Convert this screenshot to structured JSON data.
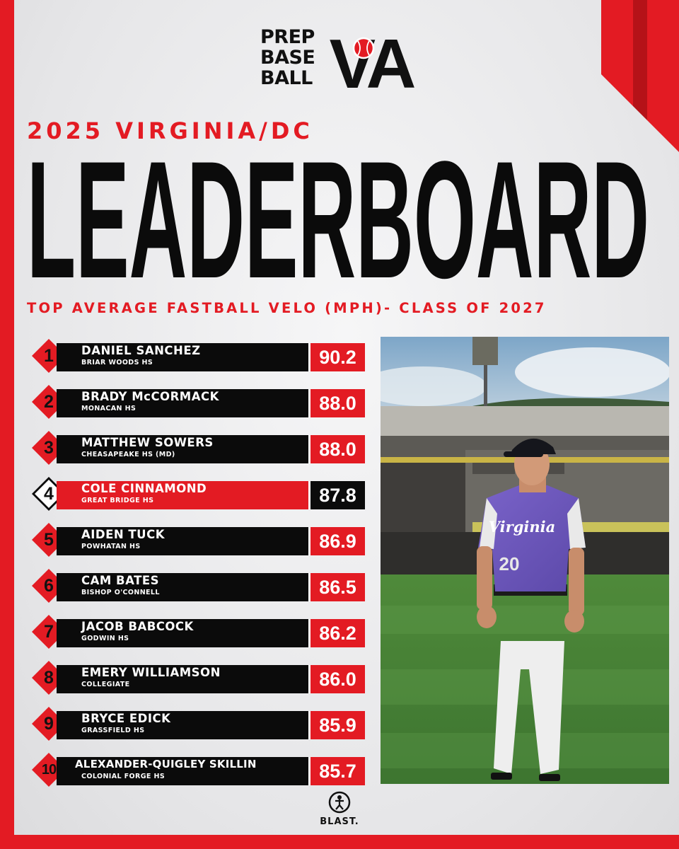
{
  "brand": {
    "logo_lines": [
      "PREP",
      "BASE",
      "BALL"
    ],
    "logo_state": "VA",
    "accent_color": "#e31b23",
    "dark_color": "#0b0b0b"
  },
  "header": {
    "year_region": "2025 VIRGINIA/DC",
    "title": "LEADERBOARD",
    "metric": "TOP AVERAGE FASTBALL VELO (MPH)- CLASS OF 2027"
  },
  "leaderboard": [
    {
      "rank": "1",
      "name": "DANIEL SANCHEZ",
      "school": "BRIAR WOODS HS",
      "velo": "90.2"
    },
    {
      "rank": "2",
      "name": "BRADY McCORMACK",
      "school": "MONACAN HS",
      "velo": "88.0"
    },
    {
      "rank": "3",
      "name": "MATTHEW SOWERS",
      "school": "CHEASAPEAKE HS (MD)",
      "velo": "88.0"
    },
    {
      "rank": "4",
      "name": "COLE CINNAMOND",
      "school": "GREAT BRIDGE HS",
      "velo": "87.8"
    },
    {
      "rank": "5",
      "name": "AIDEN TUCK",
      "school": "POWHATAN HS",
      "velo": "86.9"
    },
    {
      "rank": "6",
      "name": "CAM BATES",
      "school": "BISHOP O'CONNELL",
      "velo": "86.5"
    },
    {
      "rank": "7",
      "name": "JACOB BABCOCK",
      "school": "GODWIN HS",
      "velo": "86.2"
    },
    {
      "rank": "8",
      "name": "EMERY WILLIAMSON",
      "school": "COLLEGIATE",
      "velo": "86.0"
    },
    {
      "rank": "9",
      "name": "BRYCE EDICK",
      "school": "GRASSFIELD HS",
      "velo": "85.9"
    },
    {
      "rank": "10",
      "name": "ALEXANDER-QUIGLEY SKILLIN",
      "school": "COLONIAL FORGE HS",
      "velo": "85.7"
    }
  ],
  "photo": {
    "jersey_script": "Virginia",
    "jersey_number": "20"
  },
  "sponsor": {
    "name": "BLAST."
  }
}
